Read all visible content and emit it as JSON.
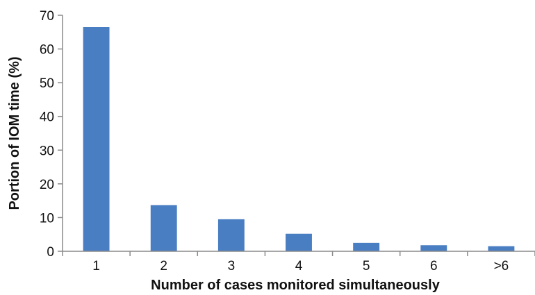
{
  "chart_data": {
    "type": "bar",
    "categories": [
      "1",
      "2",
      "3",
      "4",
      "5",
      "6",
      ">6"
    ],
    "values": [
      66.5,
      13.7,
      9.5,
      5.2,
      2.5,
      1.8,
      1.5
    ],
    "xlabel": "Number of cases monitored simultaneously",
    "ylabel": "Portion of IOM time (%)",
    "ylim": [
      0,
      70
    ],
    "yticks": [
      0,
      10,
      20,
      30,
      40,
      50,
      60,
      70
    ],
    "grid": false,
    "legend": "none",
    "bar_color": "#4a7ec2"
  }
}
